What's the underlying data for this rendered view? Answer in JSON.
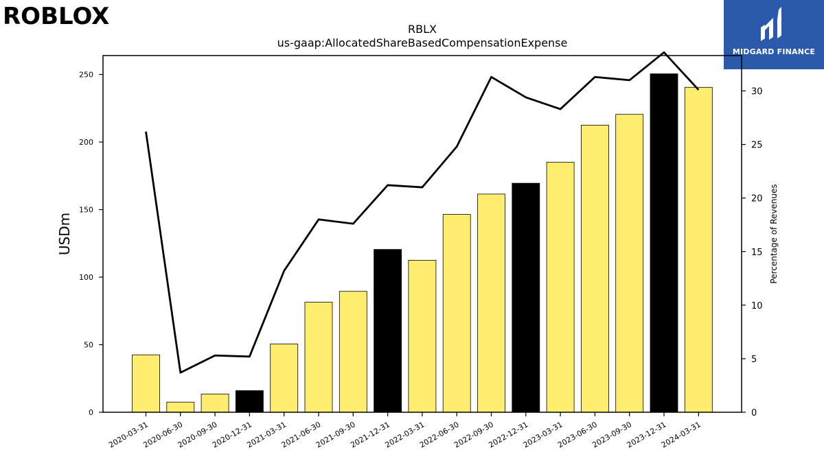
{
  "branding": {
    "left_logo_text": "ROBLOX",
    "right_logo_text": "MIDGARD FINANCE",
    "right_logo_bg": "#2b5aab"
  },
  "chart_data": {
    "type": "bar",
    "title": "RBLX",
    "subtitle": "us-gaap:AllocatedShareBasedCompensationExpense",
    "ylabel": "USDm",
    "y2label": "Percentage of Revenues",
    "ylim": [
      0,
      264
    ],
    "y2lim": [
      0,
      33.3
    ],
    "yticks": [
      0,
      50,
      100,
      150,
      200,
      250
    ],
    "y2ticks": [
      0,
      5,
      10,
      15,
      20,
      25,
      30
    ],
    "categories": [
      "2020-03-31",
      "2020-06-30",
      "2020-09-30",
      "2020-12-31",
      "2021-03-31",
      "2021-06-30",
      "2021-09-30",
      "2021-12-31",
      "2022-03-31",
      "2022-06-30",
      "2022-09-30",
      "2022-12-31",
      "2023-03-31",
      "2023-06-30",
      "2023-09-30",
      "2023-12-31",
      "2024-03-31"
    ],
    "series": [
      {
        "axis": "left",
        "type": "bar",
        "values": [
          42.5,
          7.5,
          13.5,
          16,
          50.5,
          81.5,
          89.5,
          120.5,
          112.5,
          146.5,
          161.5,
          169.5,
          185,
          212.5,
          220.5,
          250.5,
          240.5
        ],
        "colors": [
          "#ffed6f",
          "#ffed6f",
          "#ffed6f",
          "#000000",
          "#ffed6f",
          "#ffed6f",
          "#ffed6f",
          "#000000",
          "#ffed6f",
          "#ffed6f",
          "#ffed6f",
          "#000000",
          "#ffed6f",
          "#ffed6f",
          "#ffed6f",
          "#000000",
          "#ffed6f"
        ]
      },
      {
        "axis": "right",
        "type": "line",
        "color": "#000000",
        "values": [
          26.2,
          3.7,
          5.3,
          5.2,
          13.2,
          18.0,
          17.6,
          21.2,
          21.0,
          24.8,
          31.3,
          29.4,
          28.3,
          31.3,
          31.0,
          33.6,
          30.1
        ]
      }
    ],
    "grid": false
  }
}
